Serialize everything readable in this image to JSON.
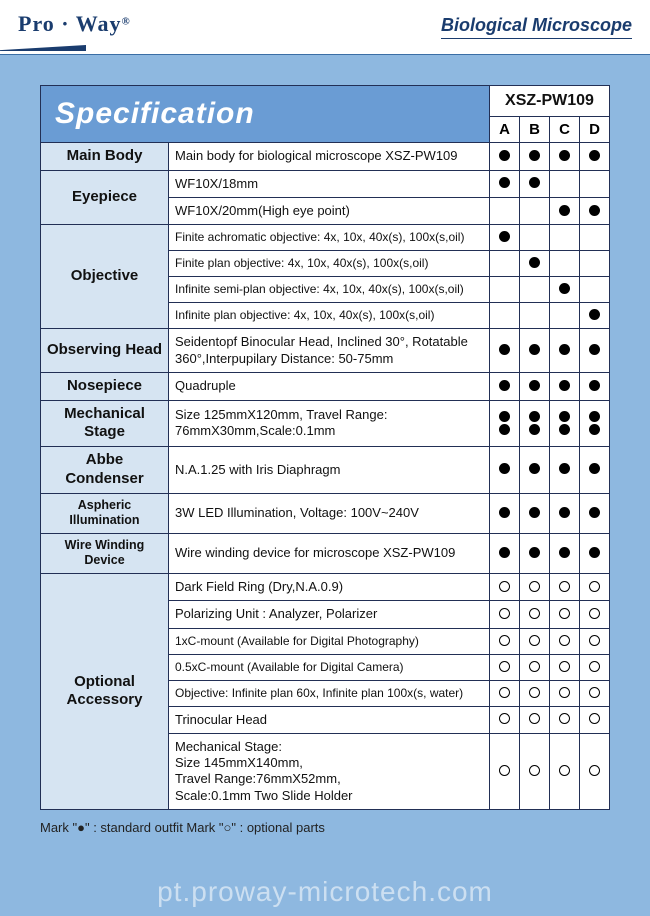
{
  "header": {
    "logo_text": "Pro · Way",
    "logo_reg": "®",
    "title": "Biological Microscope"
  },
  "spec": {
    "title": "Specification",
    "model": "XSZ-PW109",
    "columns": [
      "A",
      "B",
      "C",
      "D"
    ],
    "rows": [
      {
        "cat": "Main Body",
        "desc": "Main body for biological microscope XSZ-PW109",
        "marks": [
          "f",
          "f",
          "f",
          "f"
        ]
      },
      {
        "cat": "Eyepiece",
        "rowspan": 2,
        "desc": "WF10X/18mm",
        "marks": [
          "f",
          "f",
          "",
          ""
        ]
      },
      {
        "desc": "WF10X/20mm(High eye point)",
        "marks": [
          "",
          "",
          "f",
          "f"
        ]
      },
      {
        "cat": "Objective",
        "rowspan": 4,
        "desc": "Finite achromatic objective: 4x, 10x, 40x(s), 100x(s,oil)",
        "small": true,
        "marks": [
          "f",
          "",
          "",
          ""
        ]
      },
      {
        "desc": "Finite plan objective: 4x, 10x, 40x(s), 100x(s,oil)",
        "small": true,
        "marks": [
          "",
          "f",
          "",
          ""
        ]
      },
      {
        "desc": "Infinite semi-plan objective: 4x, 10x, 40x(s), 100x(s,oil)",
        "small": true,
        "marks": [
          "",
          "",
          "f",
          ""
        ]
      },
      {
        "desc": "Infinite plan objective: 4x, 10x, 40x(s), 100x(s,oil)",
        "small": true,
        "marks": [
          "",
          "",
          "",
          "f"
        ]
      },
      {
        "cat": "Observing Head",
        "desc": "Seidentopf Binocular Head, Inclined 30°, Rotatable 360°,Interpupilary Distance: 50-75mm",
        "marks": [
          "f",
          "f",
          "f",
          "f"
        ]
      },
      {
        "cat": "Nosepiece",
        "desc": "Quadruple",
        "marks": [
          "f",
          "f",
          "f",
          "f"
        ]
      },
      {
        "cat": "Mechanical Stage",
        "desc": "Size 125mmX120mm, Travel Range: 76mmX30mm,Scale:0.1mm",
        "marks": [
          "ff",
          "ff",
          "ff",
          "ff"
        ]
      },
      {
        "cat": "Abbe Condenser",
        "desc": "N.A.1.25 with Iris Diaphragm",
        "marks": [
          "f",
          "f",
          "f",
          "f"
        ]
      },
      {
        "cat": "Aspheric Illumination",
        "catsmall": true,
        "desc": "3W LED Illumination,  Voltage: 100V~240V",
        "marks": [
          "f",
          "f",
          "f",
          "f"
        ]
      },
      {
        "cat": "Wire Winding Device",
        "catsmall": true,
        "desc": "Wire winding device for microscope XSZ-PW109",
        "marks": [
          "f",
          "f",
          "f",
          "f"
        ]
      },
      {
        "cat": "Optional\nAccessory",
        "rowspan": 7,
        "desc": "Dark Field Ring (Dry,N.A.0.9)",
        "marks": [
          "o",
          "o",
          "o",
          "o"
        ]
      },
      {
        "desc": "Polarizing Unit : Analyzer, Polarizer",
        "marks": [
          "o",
          "o",
          "o",
          "o"
        ]
      },
      {
        "desc": "1xC-mount (Available for Digital Photography)",
        "small": true,
        "marks": [
          "o",
          "o",
          "o",
          "o"
        ]
      },
      {
        "desc": "0.5xC-mount (Available for Digital Camera)",
        "small": true,
        "marks": [
          "o",
          "o",
          "o",
          "o"
        ]
      },
      {
        "desc": "Objective: Infinite plan 60x, Infinite plan 100x(s, water)",
        "small": true,
        "marks": [
          "o",
          "o",
          "o",
          "o"
        ]
      },
      {
        "desc": "Trinocular Head",
        "marks": [
          "o",
          "o",
          "o",
          "o"
        ]
      },
      {
        "desc": "Mechanical Stage:\nSize 145mmX140mm,\nTravel Range:76mmX52mm,\nScale:0.1mm Two Slide Holder",
        "marks": [
          "o",
          "o",
          "o",
          "o"
        ]
      }
    ]
  },
  "footnote": "Mark \"●\" : standard outfit   Mark \"○\" : optional parts",
  "watermark": "pt.proway-microtech.com"
}
